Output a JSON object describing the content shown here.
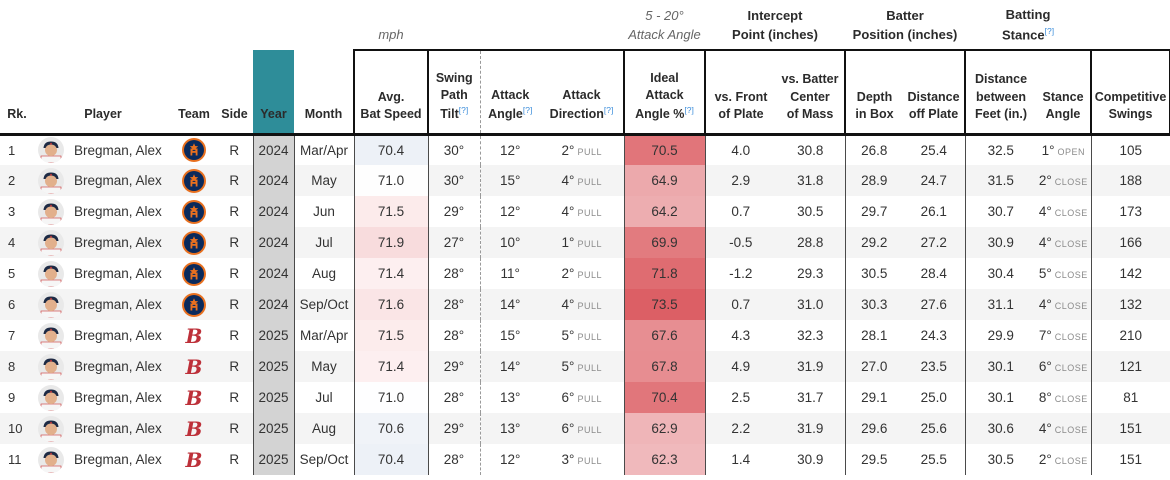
{
  "strings": {
    "help": "[?]"
  },
  "colors": {
    "year_header_teal": "#2e8d99",
    "year_cell_gray": "#d3d3d3",
    "stripe_gray": "#f4f4f4",
    "header_rule_black": "#111111",
    "help_blue": "#3d8edb",
    "astros_navy": "#0a2a5c",
    "astros_orange": "#e8701f",
    "redsox_red": "#bd3039"
  },
  "header": {
    "groups": {
      "mph": "mph",
      "ideal_note": [
        "5 - 20°",
        "Attack Angle"
      ],
      "intercept": [
        "Intercept",
        "Point (inches)"
      ],
      "batter_pos": [
        "Batter",
        "Position (inches)"
      ],
      "batting_stance": [
        "Batting",
        "Stance"
      ]
    },
    "cols": {
      "rk": "Rk.",
      "player": "Player",
      "team": "Team",
      "side": "Side",
      "year": "Year",
      "month": "Month",
      "bat": [
        "Avg.",
        "Bat Speed"
      ],
      "tilt": [
        "Swing",
        "Path",
        "Tilt"
      ],
      "angle": [
        "Attack",
        "Angle"
      ],
      "dir": [
        "Attack",
        "Direction"
      ],
      "ideal": [
        "Ideal",
        "Attack",
        "Angle %"
      ],
      "front": [
        "vs. Front",
        "of Plate"
      ],
      "center": [
        "vs. Batter",
        "Center",
        "of Mass"
      ],
      "depth": [
        "Depth",
        "in Box"
      ],
      "off": [
        "Distance",
        "off Plate"
      ],
      "feet": [
        "Distance",
        "between",
        "Feet (in.)"
      ],
      "stance": [
        "Stance",
        "Angle"
      ],
      "swings": [
        "Competitive",
        "Swings"
      ]
    }
  },
  "table": {
    "rows": [
      {
        "rk": "1",
        "player": "Bregman, Alex",
        "team": "HOU",
        "side": "R",
        "year": "2024",
        "month": "Mar/Apr",
        "bat": "70.4",
        "bat_bg": "#edf1f7",
        "tilt": "30°",
        "angle": "12°",
        "dir": "2°",
        "dir_note": "PULL",
        "ideal": "70.5",
        "ideal_bg": "#e1757a",
        "front": "4.0",
        "center": "30.8",
        "depth": "26.8",
        "off": "25.4",
        "feet": "32.5",
        "stance": "1°",
        "stance_note": "OPEN",
        "swings": "105"
      },
      {
        "rk": "2",
        "player": "Bregman, Alex",
        "team": "HOU",
        "side": "R",
        "year": "2024",
        "month": "May",
        "bat": "71.0",
        "bat_bg": "#fefefe",
        "tilt": "30°",
        "angle": "15°",
        "dir": "4°",
        "dir_note": "PULL",
        "ideal": "64.9",
        "ideal_bg": "#eca9ac",
        "front": "2.9",
        "center": "31.8",
        "depth": "28.9",
        "off": "24.7",
        "feet": "31.5",
        "stance": "2°",
        "stance_note": "CLOSE",
        "swings": "188"
      },
      {
        "rk": "3",
        "player": "Bregman, Alex",
        "team": "HOU",
        "side": "R",
        "year": "2024",
        "month": "Jun",
        "bat": "71.5",
        "bat_bg": "#fcebeb",
        "tilt": "29°",
        "angle": "12°",
        "dir": "4°",
        "dir_note": "PULL",
        "ideal": "64.2",
        "ideal_bg": "#edadb0",
        "front": "0.7",
        "center": "30.5",
        "depth": "29.7",
        "off": "26.1",
        "feet": "30.7",
        "stance": "4°",
        "stance_note": "CLOSE",
        "swings": "173"
      },
      {
        "rk": "4",
        "player": "Bregman, Alex",
        "team": "HOU",
        "side": "R",
        "year": "2024",
        "month": "Jul",
        "bat": "71.9",
        "bat_bg": "#f8dcdd",
        "tilt": "27°",
        "angle": "10°",
        "dir": "1°",
        "dir_note": "PULL",
        "ideal": "69.9",
        "ideal_bg": "#e27b7f",
        "front": "-0.5",
        "center": "28.8",
        "depth": "29.2",
        "off": "27.2",
        "feet": "30.9",
        "stance": "4°",
        "stance_note": "CLOSE",
        "swings": "166"
      },
      {
        "rk": "5",
        "player": "Bregman, Alex",
        "team": "HOU",
        "side": "R",
        "year": "2024",
        "month": "Aug",
        "bat": "71.4",
        "bat_bg": "#fdeff0",
        "tilt": "28°",
        "angle": "11°",
        "dir": "2°",
        "dir_note": "PULL",
        "ideal": "71.8",
        "ideal_bg": "#df6c71",
        "front": "-1.2",
        "center": "29.3",
        "depth": "30.5",
        "off": "28.4",
        "feet": "30.4",
        "stance": "5°",
        "stance_note": "CLOSE",
        "swings": "142"
      },
      {
        "rk": "6",
        "player": "Bregman, Alex",
        "team": "HOU",
        "side": "R",
        "year": "2024",
        "month": "Sep/Oct",
        "bat": "71.6",
        "bat_bg": "#fae5e6",
        "tilt": "28°",
        "angle": "14°",
        "dir": "4°",
        "dir_note": "PULL",
        "ideal": "73.5",
        "ideal_bg": "#dc5f65",
        "front": "0.7",
        "center": "31.0",
        "depth": "30.3",
        "off": "27.6",
        "feet": "31.1",
        "stance": "4°",
        "stance_note": "CLOSE",
        "swings": "132"
      },
      {
        "rk": "7",
        "player": "Bregman, Alex",
        "team": "BOS",
        "side": "R",
        "year": "2025",
        "month": "Mar/Apr",
        "bat": "71.5",
        "bat_bg": "#fcecec",
        "tilt": "28°",
        "angle": "15°",
        "dir": "5°",
        "dir_note": "PULL",
        "ideal": "67.6",
        "ideal_bg": "#e78e92",
        "front": "4.3",
        "center": "32.3",
        "depth": "28.1",
        "off": "24.3",
        "feet": "29.9",
        "stance": "7°",
        "stance_note": "CLOSE",
        "swings": "210"
      },
      {
        "rk": "8",
        "player": "Bregman, Alex",
        "team": "BOS",
        "side": "R",
        "year": "2025",
        "month": "May",
        "bat": "71.4",
        "bat_bg": "#fdeff0",
        "tilt": "29°",
        "angle": "14°",
        "dir": "5°",
        "dir_note": "PULL",
        "ideal": "67.8",
        "ideal_bg": "#e78d91",
        "front": "4.9",
        "center": "31.9",
        "depth": "27.0",
        "off": "23.5",
        "feet": "30.1",
        "stance": "6°",
        "stance_note": "CLOSE",
        "swings": "121"
      },
      {
        "rk": "9",
        "player": "Bregman, Alex",
        "team": "BOS",
        "side": "R",
        "year": "2025",
        "month": "Jul",
        "bat": "71.0",
        "bat_bg": "#fefeff",
        "tilt": "28°",
        "angle": "13°",
        "dir": "6°",
        "dir_note": "PULL",
        "ideal": "70.4",
        "ideal_bg": "#e1767b",
        "front": "2.5",
        "center": "31.7",
        "depth": "29.1",
        "off": "25.0",
        "feet": "30.1",
        "stance": "8°",
        "stance_note": "CLOSE",
        "swings": "81"
      },
      {
        "rk": "10",
        "player": "Bregman, Alex",
        "team": "BOS",
        "side": "R",
        "year": "2025",
        "month": "Aug",
        "bat": "70.6",
        "bat_bg": "#f0f3f8",
        "tilt": "29°",
        "angle": "13°",
        "dir": "6°",
        "dir_note": "PULL",
        "ideal": "62.9",
        "ideal_bg": "#efb5b8",
        "front": "2.2",
        "center": "31.9",
        "depth": "29.6",
        "off": "25.6",
        "feet": "30.6",
        "stance": "4°",
        "stance_note": "CLOSE",
        "swings": "151"
      },
      {
        "rk": "11",
        "player": "Bregman, Alex",
        "team": "BOS",
        "side": "R",
        "year": "2025",
        "month": "Sep/Oct",
        "bat": "70.4",
        "bat_bg": "#edf1f7",
        "tilt": "28°",
        "angle": "12°",
        "dir": "3°",
        "dir_note": "PULL",
        "ideal": "62.3",
        "ideal_bg": "#f0b9bc",
        "front": "1.4",
        "center": "30.9",
        "depth": "29.5",
        "off": "25.5",
        "feet": "30.5",
        "stance": "2°",
        "stance_note": "CLOSE",
        "swings": "151"
      }
    ]
  }
}
